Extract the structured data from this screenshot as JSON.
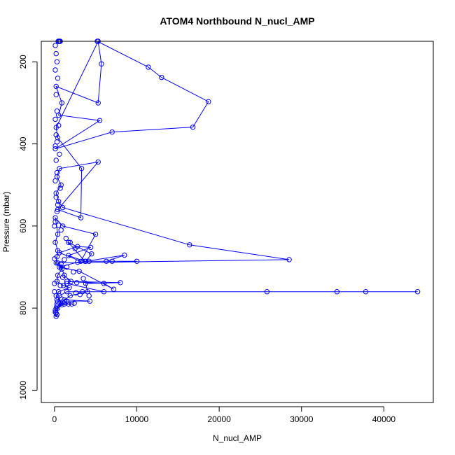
{
  "chart_data": {
    "type": "scatter",
    "title": "ATOM4 Northbound N_nucl_AMP",
    "xlabel": "N_nucl_AMP",
    "ylabel": "Pressure (mbar)",
    "xlim": [
      -1600,
      46000
    ],
    "ylim": [
      1030,
      150
    ],
    "y_reversed": true,
    "grid": false,
    "x_ticks": [
      0,
      10000,
      20000,
      30000,
      40000
    ],
    "y_ticks": [
      200,
      400,
      600,
      800,
      1000
    ],
    "colors": {
      "series": "#0000ff",
      "axis": "#000000"
    },
    "series": [
      {
        "mode": "lines+markers",
        "points": [
          [
            700,
            150
          ],
          [
            550,
            150
          ],
          [
            450,
            150
          ],
          [
            600,
            150
          ],
          [
            5200,
            150
          ],
          [
            11400,
            213
          ],
          [
            13000,
            238
          ],
          [
            18700,
            297
          ],
          [
            16800,
            359
          ],
          [
            7000,
            371
          ],
          [
            100,
            412
          ],
          [
            5500,
            343
          ],
          [
            500,
            330
          ],
          [
            900,
            300
          ],
          [
            200,
            260
          ],
          [
            5300,
            300
          ],
          [
            5700,
            205
          ],
          [
            5300,
            150
          ],
          [
            200,
            360
          ],
          [
            400,
            385
          ],
          [
            3300,
            460
          ],
          [
            3200,
            580
          ],
          [
            400,
            560
          ],
          [
            5300,
            444
          ],
          [
            600,
            460
          ],
          [
            300,
            480
          ],
          [
            800,
            500
          ],
          [
            200,
            520
          ],
          [
            500,
            540
          ],
          [
            1000,
            555
          ],
          [
            16400,
            646
          ],
          [
            28500,
            682
          ],
          [
            400,
            690
          ],
          [
            800,
            700
          ],
          [
            1200,
            720
          ],
          [
            2000,
            735
          ],
          [
            1500,
            740
          ],
          [
            6000,
            760
          ],
          [
            44100,
            760
          ],
          [
            37800,
            760
          ],
          [
            34300,
            760
          ],
          [
            25800,
            760
          ],
          [
            1500,
            760
          ],
          [
            600,
            770
          ],
          [
            400,
            785
          ],
          [
            300,
            790
          ],
          [
            1700,
            790
          ],
          [
            2100,
            790
          ],
          [
            900,
            792
          ],
          [
            300,
            795
          ],
          [
            400,
            800
          ],
          [
            1000,
            785
          ],
          [
            4300,
            783
          ],
          [
            1200,
            780
          ],
          [
            1900,
            770
          ],
          [
            4000,
            760
          ],
          [
            3800,
            740
          ],
          [
            8000,
            738
          ],
          [
            1500,
            735
          ],
          [
            6000,
            740
          ],
          [
            7200,
            754
          ],
          [
            3000,
            710
          ],
          [
            600,
            700
          ],
          [
            2800,
            688
          ],
          [
            4200,
            686
          ],
          [
            10000,
            686
          ],
          [
            7000,
            686
          ],
          [
            6300,
            686
          ],
          [
            8500,
            671
          ],
          [
            3800,
            686
          ],
          [
            4500,
            668
          ],
          [
            1700,
            640
          ],
          [
            3700,
            686
          ],
          [
            1700,
            672
          ],
          [
            4400,
            652
          ],
          [
            2800,
            650
          ],
          [
            600,
            665
          ],
          [
            3200,
            686
          ],
          [
            5000,
            620
          ],
          [
            1000,
            600
          ],
          [
            100,
            580
          ],
          [
            400,
            620
          ],
          [
            100,
            640
          ],
          [
            400,
            660
          ],
          [
            200,
            690
          ],
          [
            900,
            705
          ],
          [
            400,
            720
          ],
          [
            300,
            735
          ],
          [
            1100,
            745
          ],
          [
            1800,
            750
          ],
          [
            500,
            760
          ],
          [
            200,
            770
          ],
          [
            300,
            780
          ],
          [
            1200,
            790
          ],
          [
            200,
            800
          ],
          [
            100,
            810
          ],
          [
            200,
            820
          ],
          [
            300,
            816
          ]
        ]
      },
      {
        "mode": "markers",
        "points": [
          [
            100,
            160
          ],
          [
            200,
            180
          ],
          [
            300,
            200
          ],
          [
            100,
            220
          ],
          [
            400,
            240
          ],
          [
            200,
            280
          ],
          [
            300,
            320
          ],
          [
            100,
            340
          ],
          [
            500,
            355
          ],
          [
            200,
            378
          ],
          [
            300,
            395
          ],
          [
            100,
            405
          ],
          [
            600,
            425
          ],
          [
            200,
            440
          ],
          [
            300,
            470
          ],
          [
            100,
            490
          ],
          [
            700,
            508
          ],
          [
            200,
            530
          ],
          [
            400,
            548
          ],
          [
            300,
            565
          ],
          [
            100,
            590
          ],
          [
            500,
            598
          ],
          [
            800,
            610
          ],
          [
            1400,
            630
          ],
          [
            1900,
            640
          ],
          [
            2500,
            655
          ],
          [
            300,
            675
          ],
          [
            1200,
            682
          ],
          [
            800,
            692
          ],
          [
            1500,
            700
          ],
          [
            2300,
            712
          ],
          [
            1000,
            725
          ],
          [
            3500,
            728
          ],
          [
            2700,
            738
          ],
          [
            700,
            745
          ],
          [
            3400,
            760
          ],
          [
            2600,
            763
          ],
          [
            3100,
            767
          ],
          [
            4200,
            770
          ],
          [
            900,
            778
          ],
          [
            1500,
            783
          ],
          [
            2400,
            788
          ],
          [
            100,
            805
          ],
          [
            200,
            812
          ],
          [
            0,
            600
          ],
          [
            0,
            680
          ],
          [
            0,
            740
          ],
          [
            0,
            760
          ]
        ]
      }
    ]
  }
}
